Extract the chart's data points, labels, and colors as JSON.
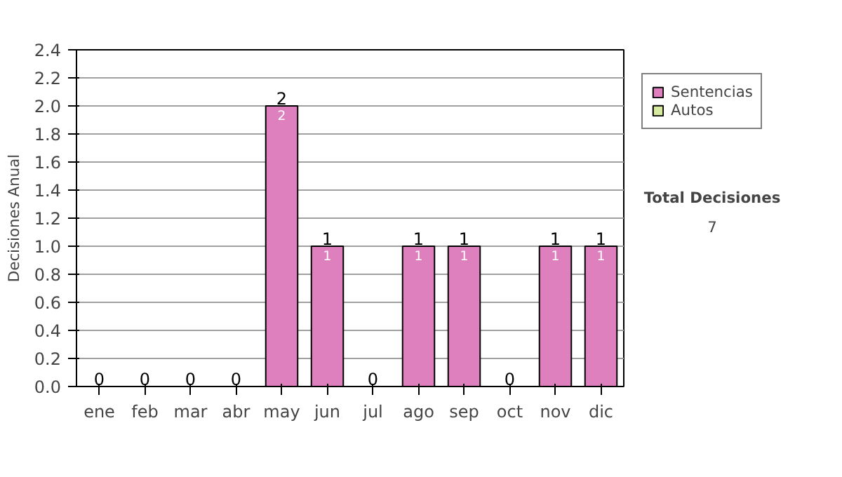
{
  "chart_data": {
    "type": "bar",
    "stacked": true,
    "ylabel": "Decisiones Anual",
    "categories": [
      "ene",
      "feb",
      "mar",
      "abr",
      "may",
      "jun",
      "jul",
      "ago",
      "sep",
      "oct",
      "nov",
      "dic"
    ],
    "series": [
      {
        "name": "Sentencias",
        "color": "#dd80bd",
        "values": [
          0,
          0,
          0,
          0,
          2,
          1,
          0,
          1,
          1,
          0,
          1,
          1
        ],
        "value_labels": [
          null,
          null,
          null,
          null,
          "2",
          "1",
          null,
          "1",
          "1",
          null,
          "1",
          "1"
        ]
      },
      {
        "name": "Autos",
        "color": "#d6eaa0",
        "values": [
          0,
          0,
          0,
          0,
          0,
          0,
          0,
          0,
          0,
          0,
          0,
          0
        ]
      }
    ],
    "totals": [
      "0",
      "0",
      "0",
      "0",
      "2",
      "1",
      "0",
      "1",
      "1",
      "0",
      "1",
      "1"
    ],
    "ylim": [
      0,
      2.4
    ],
    "yticks": [
      {
        "value": 0,
        "label": "0.0"
      },
      {
        "value": 0.2,
        "label": "0.2"
      },
      {
        "value": 0.4,
        "label": "0.4"
      },
      {
        "value": 0.6,
        "label": "0.6"
      },
      {
        "value": 0.8,
        "label": "0.8"
      },
      {
        "value": 1.0,
        "label": "1.0"
      },
      {
        "value": 1.2,
        "label": "1.2"
      },
      {
        "value": 1.4,
        "label": "1.4"
      },
      {
        "value": 1.6,
        "label": "1.6"
      },
      {
        "value": 1.8,
        "label": "1.8"
      },
      {
        "value": 2.0,
        "label": "2.0"
      },
      {
        "value": 2.2,
        "label": "2.2"
      },
      {
        "value": 2.4,
        "label": "2.4"
      }
    ],
    "grid": "y",
    "legend": "right",
    "annotations": [
      "Total Decisiones",
      "7"
    ]
  }
}
